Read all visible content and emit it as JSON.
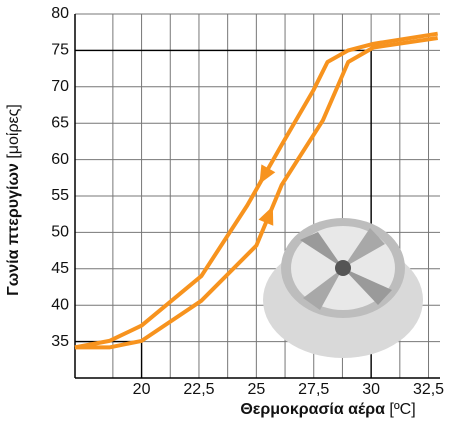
{
  "chart_data": {
    "type": "line",
    "x_label": "Θερμοκρασία αέρα",
    "x_unit": "[ºC]",
    "y_label": "Γωνία πτερυγίων",
    "y_unit": "[μοίρες]",
    "xlim": [
      17.1,
      33
    ],
    "ylim": [
      30,
      80
    ],
    "xticks": [
      20,
      {
        "value": 22.5,
        "label": "22,5"
      },
      25,
      {
        "value": 27.5,
        "label": "27,5"
      },
      30,
      {
        "value": 32.5,
        "label": "32,5"
      }
    ],
    "x_minor_grid": [
      18.75,
      21.25,
      23.75,
      26.25,
      28.75,
      31.25
    ],
    "yticks": [
      35,
      40,
      45,
      50,
      55,
      60,
      65,
      70,
      75,
      80
    ],
    "grid": true,
    "reference_points": [
      {
        "x": 20,
        "y": 35
      },
      {
        "x": 30,
        "y": 75
      }
    ],
    "series": [
      {
        "color": "#f7931e",
        "direction": "up",
        "x": [
          17.1,
          18.6,
          20,
          22.6,
          25,
          26.1,
          27.9,
          29,
          30.1,
          32.9
        ],
        "values": [
          34.2,
          34.2,
          35.1,
          40.6,
          48.2,
          56.5,
          65.4,
          73.4,
          75.4,
          76.7
        ]
      },
      {
        "color": "#f7931e",
        "direction": "down",
        "x": [
          17.1,
          18.6,
          20,
          22.6,
          24.6,
          26.1,
          27.5,
          28.1,
          29,
          30.1,
          32.9
        ],
        "values": [
          34.2,
          35.1,
          37.2,
          44,
          53.7,
          62,
          69.6,
          73.4,
          75,
          75.9,
          77.3
        ]
      }
    ]
  }
}
